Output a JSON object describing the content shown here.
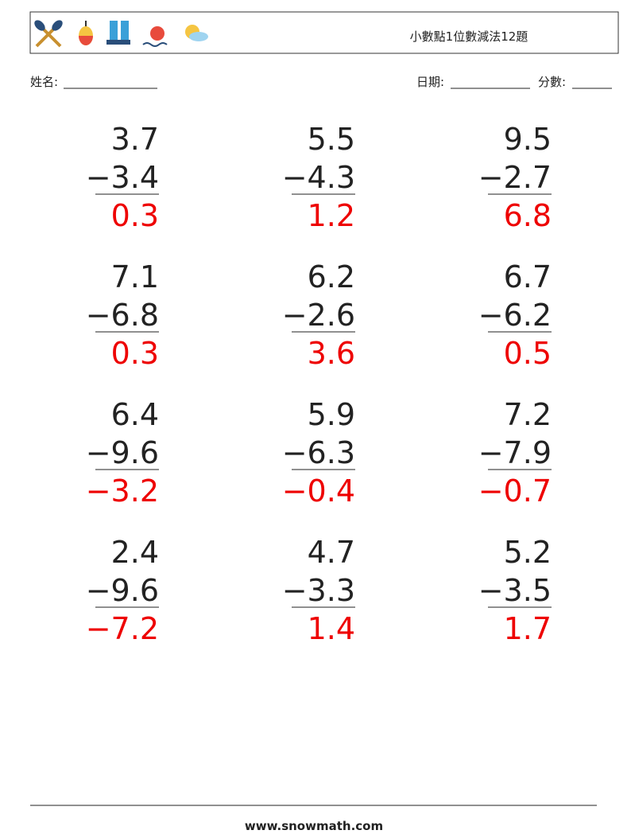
{
  "header": {
    "title": "小數點1位數減法12題"
  },
  "fields": {
    "name": "姓名:",
    "date": "日期:",
    "score": "分數:"
  },
  "problems": [
    {
      "top": "3.7",
      "bottom": "−3.4",
      "answer": "0.3"
    },
    {
      "top": "5.5",
      "bottom": "−4.3",
      "answer": "1.2"
    },
    {
      "top": "9.5",
      "bottom": "−2.7",
      "answer": "6.8"
    },
    {
      "top": "7.1",
      "bottom": "−6.8",
      "answer": "0.3"
    },
    {
      "top": "6.2",
      "bottom": "−2.6",
      "answer": "3.6"
    },
    {
      "top": "6.7",
      "bottom": "−6.2",
      "answer": "0.5"
    },
    {
      "top": "6.4",
      "bottom": "−9.6",
      "answer": "−3.2"
    },
    {
      "top": "5.9",
      "bottom": "−6.3",
      "answer": "−0.4"
    },
    {
      "top": "7.2",
      "bottom": "−7.9",
      "answer": "−0.7"
    },
    {
      "top": "2.4",
      "bottom": "−9.6",
      "answer": "−7.2"
    },
    {
      "top": "4.7",
      "bottom": "−3.3",
      "answer": "1.4"
    },
    {
      "top": "5.2",
      "bottom": "−3.5",
      "answer": "1.7"
    }
  ],
  "footer": {
    "site": "www.snowmath.com"
  }
}
